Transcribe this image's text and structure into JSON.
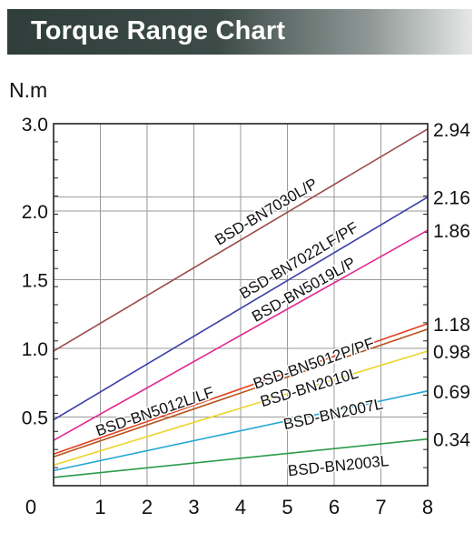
{
  "header": {
    "title": "Torque Range Chart"
  },
  "chart_data": {
    "type": "line",
    "ylabel": "N.m",
    "x": [
      0,
      8
    ],
    "xlim": [
      0,
      8
    ],
    "ylim": [
      0,
      3.0
    ],
    "x_ticks": [
      1,
      2,
      3,
      4,
      5,
      6,
      7,
      8
    ],
    "x_origin_label": "0",
    "y_ticks": [
      {
        "value": 3.0,
        "label": "3.0"
      },
      {
        "value": 2.0,
        "label": "2.0"
      },
      {
        "value": 1.5,
        "label": "1.5"
      },
      {
        "value": 1.0,
        "label": "1.0"
      },
      {
        "value": 0.5,
        "label": "0.5"
      }
    ],
    "right_ticks": [
      {
        "value": 2.94,
        "label": "2.94"
      },
      {
        "value": 2.16,
        "label": "2.16"
      },
      {
        "value": 1.86,
        "label": "1.86"
      },
      {
        "value": 1.18,
        "label": "1.18"
      },
      {
        "value": 0.98,
        "label": "0.98"
      },
      {
        "value": 0.69,
        "label": "0.69"
      },
      {
        "value": 0.34,
        "label": "0.34"
      }
    ],
    "grid": true,
    "series": [
      {
        "name": "BSD-BN7030L/P",
        "values": [
          0.98,
          2.94
        ],
        "color": "#9c4a4a"
      },
      {
        "name": "BSD-BN7022LF/PF",
        "values": [
          0.48,
          2.16
        ],
        "color": "#3a3fa6"
      },
      {
        "name": "BSD-BN5019L/P",
        "values": [
          0.33,
          1.86
        ],
        "color": "#e0288f"
      },
      {
        "name": "BSD-BN5012P/PF",
        "values": [
          0.23,
          1.18
        ],
        "color": "#e2401c"
      },
      {
        "name": "BSD-BN5012L/LF",
        "values": [
          0.21,
          1.14
        ],
        "color": "#b8531d"
      },
      {
        "name": "BSD-BN2010L",
        "values": [
          0.15,
          0.98
        ],
        "color": "#ecd52a"
      },
      {
        "name": "BSD-BN2007L",
        "values": [
          0.11,
          0.69
        ],
        "color": "#24a7d4"
      },
      {
        "name": "BSD-BN2003L",
        "values": [
          0.06,
          0.34
        ],
        "color": "#2c9a4a"
      }
    ]
  }
}
